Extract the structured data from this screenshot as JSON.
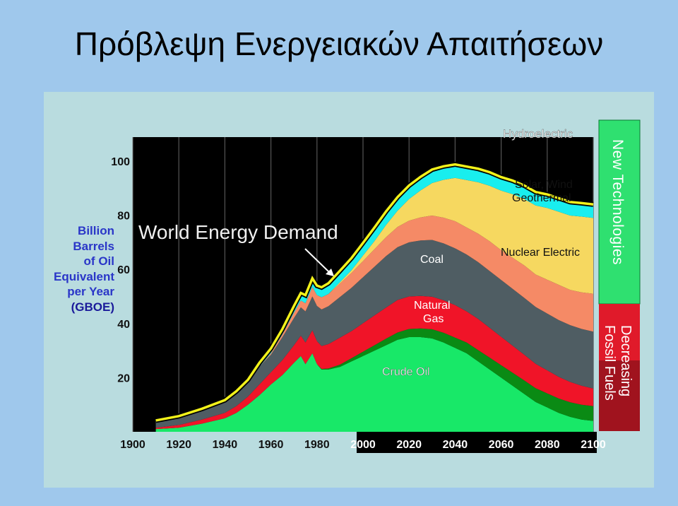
{
  "title": "Πρόβλεψη Ενεργειακών Απαιτήσεων",
  "chart_data": {
    "type": "area",
    "title": "World Energy Demand",
    "ylabel_lines": [
      "Billion",
      "Barrels",
      "of Oil",
      "Equivalent",
      "per Year",
      "(GBOE)"
    ],
    "ylim": [
      0,
      110
    ],
    "yticks": [
      20,
      40,
      60,
      80,
      100
    ],
    "xlim": [
      1900,
      2100
    ],
    "xticks": [
      1900,
      1920,
      1940,
      1960,
      1980,
      2000,
      2020,
      2040,
      2060,
      2080,
      2100
    ],
    "x": [
      1910,
      1920,
      1930,
      1940,
      1945,
      1950,
      1955,
      1960,
      1965,
      1970,
      1973,
      1975,
      1978,
      1980,
      1982,
      1985,
      1990,
      1995,
      2000,
      2005,
      2010,
      2015,
      2020,
      2025,
      2030,
      2035,
      2040,
      2045,
      2050,
      2055,
      2060,
      2065,
      2070,
      2075,
      2080,
      2085,
      2090,
      2095,
      2100
    ],
    "series": [
      {
        "name": "Crude Oil",
        "color": "#18e868",
        "values": [
          1,
          1.5,
          3,
          5,
          7,
          10,
          13.5,
          17.5,
          21,
          25.5,
          28,
          25,
          29,
          25,
          23,
          23,
          24,
          26,
          28,
          30,
          32,
          34,
          35,
          35,
          34.5,
          33,
          31,
          29,
          26,
          23,
          20,
          17,
          14,
          11,
          9,
          7,
          5.5,
          4.5,
          4
        ]
      },
      {
        "name": "",
        "color": "#0a8a14",
        "values": [
          0,
          0,
          0,
          0,
          0,
          0,
          0,
          0,
          0,
          0,
          0,
          0,
          0,
          0,
          0.2,
          0.4,
          0.8,
          1.2,
          1.6,
          2,
          2.4,
          2.7,
          3,
          3.2,
          3.4,
          3.6,
          3.8,
          4,
          4.2,
          4.4,
          4.6,
          4.8,
          5,
          5.1,
          5.2,
          5.3,
          5.4,
          5.5,
          5.5
        ]
      },
      {
        "name": "Natural Gas",
        "color": "#f01428",
        "values": [
          0.5,
          1,
          1.5,
          2,
          2.5,
          3,
          4,
          4.5,
          5.5,
          6.5,
          7.5,
          8,
          8.5,
          8.5,
          8.5,
          9,
          10,
          10,
          10.5,
          11,
          11.5,
          12,
          12,
          12,
          12,
          12,
          12,
          11.5,
          11.5,
          11,
          10.5,
          10,
          9.5,
          9,
          8.5,
          8,
          7.5,
          7,
          6.5
        ]
      },
      {
        "name": "Coal",
        "color": "#4f5d63",
        "values": [
          2.5,
          3,
          3.5,
          4,
          4.5,
          5,
          6.5,
          6.5,
          8.5,
          10,
          10.5,
          11.5,
          12.5,
          13,
          13.5,
          14,
          15,
          16,
          17,
          18,
          19,
          19.5,
          20,
          20.5,
          21,
          21,
          21,
          21,
          21,
          21,
          21,
          21,
          21,
          21,
          21,
          21,
          21,
          21,
          21
        ]
      },
      {
        "name": "Nuclear Electric",
        "color": "#f58a66",
        "values": [
          0,
          0,
          0,
          0,
          0,
          0,
          0,
          0.5,
          1,
          2,
          2.5,
          3,
          3.5,
          4,
          4.5,
          4.5,
          5,
          5.5,
          6,
          6.5,
          7,
          7.5,
          8,
          8.5,
          9,
          9.5,
          10,
          10,
          10.5,
          11,
          11,
          11.5,
          12,
          12,
          12.5,
          13,
          13,
          13.5,
          14
        ]
      },
      {
        "name": "Solar, Wind Geothermal",
        "color": "#f6d860",
        "values": [
          0,
          0,
          0,
          0,
          0,
          0,
          0,
          0,
          0,
          0,
          0,
          0,
          0,
          0,
          0,
          0,
          0.5,
          1,
          2,
          3,
          4.5,
          6,
          8,
          10,
          12,
          14,
          16,
          17.5,
          19,
          20.5,
          22,
          23.5,
          24.5,
          25.5,
          26.5,
          27,
          27.5,
          28,
          28
        ]
      },
      {
        "name": "Hydroelectric",
        "color": "#19eeee",
        "values": [
          0.2,
          0.3,
          0.5,
          0.7,
          1,
          1.2,
          1.5,
          1.8,
          2,
          2.5,
          2.8,
          3,
          3.2,
          3.5,
          3.7,
          4,
          4.2,
          4.5,
          4.7,
          5,
          5,
          5,
          5,
          5,
          5,
          5,
          5,
          5,
          5,
          5,
          5,
          5,
          5,
          5,
          5,
          5,
          5,
          5,
          5
        ]
      }
    ],
    "side_labels": [
      "New Technologies",
      "Decreasing Fossil Fuels"
    ]
  }
}
